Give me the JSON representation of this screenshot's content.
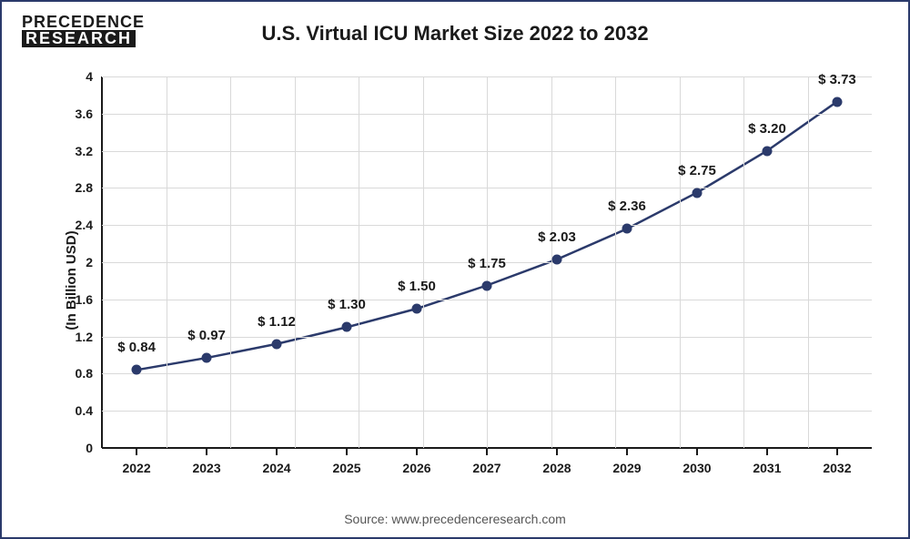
{
  "logo": {
    "line1": "PRECEDENCE",
    "line2": "RESEARCH"
  },
  "chart": {
    "type": "line",
    "title": "U.S. Virtual ICU Market Size 2022 to 2032",
    "ylabel": "(In Billion USD)",
    "source": "Source: www.precedenceresearch.com",
    "ylim": [
      0,
      4
    ],
    "ytick_step": 0.4,
    "yticks": [
      "0",
      "0.4",
      "0.8",
      "1.2",
      "1.6",
      "2",
      "2.4",
      "2.8",
      "3.2",
      "3.6",
      "4"
    ],
    "categories": [
      "2022",
      "2023",
      "2024",
      "2025",
      "2026",
      "2027",
      "2028",
      "2029",
      "2030",
      "2031",
      "2032"
    ],
    "values": [
      0.84,
      0.97,
      1.12,
      1.3,
      1.5,
      1.75,
      2.03,
      2.36,
      2.75,
      3.2,
      3.73
    ],
    "value_labels": [
      "$ 0.84",
      "$ 0.97",
      "$ 1.12",
      "$ 1.30",
      "$ 1.50",
      "$ 1.75",
      "$ 2.03",
      "$ 2.36",
      "$ 2.75",
      "$ 3.20",
      "$ 3.73"
    ],
    "line_color": "#2b3a6b",
    "line_width": 2.5,
    "marker_color": "#2b3a6b",
    "marker_size": 11,
    "grid_color": "#d9d9d9",
    "axis_color": "#1a1a1a",
    "background_color": "#ffffff",
    "title_fontsize": 22,
    "label_fontsize": 15,
    "tick_fontsize": 14,
    "value_label_fontsize": 15,
    "x_vgrid_count": 12,
    "value_label_dy": -16
  }
}
